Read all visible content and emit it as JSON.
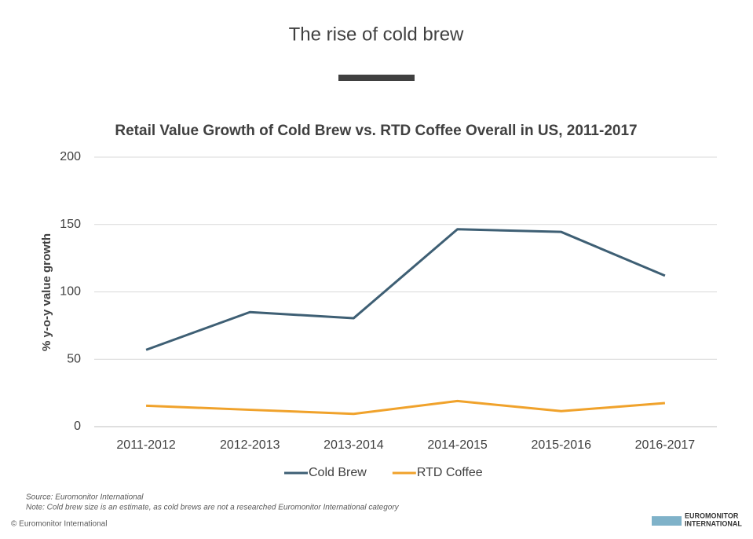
{
  "header": {
    "title": "The rise of cold brew"
  },
  "chart_data": {
    "type": "line",
    "title": "Retail Value Growth of Cold Brew vs. RTD Coffee Overall in US, 2011-2017",
    "y_label": "% y-o-y value growth",
    "categories": [
      "2011-2012",
      "2012-2013",
      "2013-2014",
      "2014-2015",
      "2015-2016",
      "2016-2017"
    ],
    "series": [
      {
        "name": "Cold Brew",
        "color": "#3e5f74",
        "values": [
          57,
          85,
          80.5,
          146.5,
          144.5,
          112
        ]
      },
      {
        "name": "RTD Coffee",
        "color": "#f0a22b",
        "values": [
          15.5,
          12.5,
          9.5,
          19,
          11.5,
          17.5
        ]
      }
    ],
    "ylim": [
      0,
      200
    ],
    "yticks": [
      0,
      50,
      100,
      150,
      200
    ],
    "grid": true,
    "legend": "bottom"
  },
  "footer": {
    "source": "Source: Euromonitor International",
    "note": "Note: Cold brew size is an estimate, as cold brews are not a researched Euromonitor International category",
    "copyright": "© Euromonitor International",
    "logo_line1": "EUROMONITOR",
    "logo_line2": "INTERNATIONAL"
  }
}
